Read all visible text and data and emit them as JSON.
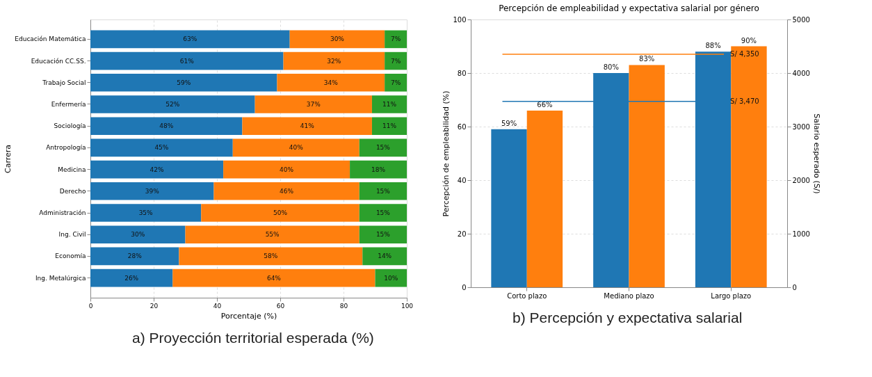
{
  "chart_data": [
    {
      "type": "bar",
      "orientation": "horizontal",
      "stacked": true,
      "xlabel": "Porcentaje (%)",
      "ylabel": "Carrera",
      "categories": [
        "Educación Matemática",
        "Educación CC.SS.",
        "Trabajo Social",
        "Enfermería",
        "Sociología",
        "Antropología",
        "Medicina",
        "Derecho",
        "Administración",
        "Ing. Civil",
        "Economía",
        "Ing. Metalúrgica"
      ],
      "series": [
        {
          "color": "#1f77b4",
          "values": [
            63,
            61,
            59,
            52,
            48,
            45,
            42,
            39,
            35,
            30,
            28,
            26
          ],
          "value_labels": [
            "63%",
            "61%",
            "59%",
            "52%",
            "48%",
            "45%",
            "42%",
            "39%",
            "35%",
            "30%",
            "28%",
            "26%"
          ]
        },
        {
          "color": "#ff7f0e",
          "values": [
            30,
            32,
            34,
            37,
            41,
            40,
            40,
            46,
            50,
            55,
            58,
            64
          ],
          "value_labels": [
            "30%",
            "32%",
            "34%",
            "37%",
            "41%",
            "40%",
            "40%",
            "46%",
            "50%",
            "55%",
            "58%",
            "64%"
          ]
        },
        {
          "color": "#2ca02c",
          "values": [
            7,
            7,
            7,
            11,
            11,
            15,
            18,
            15,
            15,
            15,
            14,
            10
          ],
          "value_labels": [
            "7%",
            "7%",
            "7%",
            "11%",
            "11%",
            "15%",
            "18%",
            "15%",
            "15%",
            "15%",
            "14%",
            "10%"
          ]
        }
      ],
      "xlim": [
        0,
        100
      ],
      "xticks": [
        0,
        20,
        40,
        60,
        80,
        100
      ],
      "grid": "x",
      "annotations": [
        "a)     Proyección territorial esperada (%)"
      ]
    },
    {
      "type": "bar",
      "title": "Percepción de empleabilidad y expectativa salarial por género",
      "ylabel": "Percepción de empleabilidad (%)",
      "y2label": "Salario esperado (S/)",
      "categories": [
        "Corto plazo",
        "Mediano plazo",
        "Largo plazo"
      ],
      "series": [
        {
          "color": "#1f77b4",
          "values": [
            59,
            80,
            88
          ],
          "value_labels": [
            "59%",
            "80%",
            "88%"
          ]
        },
        {
          "color": "#ff7f0e",
          "values": [
            66,
            83,
            90
          ],
          "value_labels": [
            "66%",
            "83%",
            "90%"
          ]
        }
      ],
      "ylim": [
        0,
        100
      ],
      "yticks": [
        0,
        20,
        40,
        60,
        80,
        100
      ],
      "y2lim": [
        0,
        5000
      ],
      "y2ticks": [
        0,
        1000,
        2000,
        3000,
        4000,
        5000
      ],
      "ref_lines": [
        {
          "axis": "y2",
          "value": 4350,
          "label": "S/ 4,350",
          "color": "#ff7f0e"
        },
        {
          "axis": "y2",
          "value": 3470,
          "label": "S/ 3,470",
          "color": "#1f77b4"
        }
      ],
      "grid": "y",
      "annotations": [
        "b)     Percepción y expectativa salarial"
      ]
    }
  ]
}
